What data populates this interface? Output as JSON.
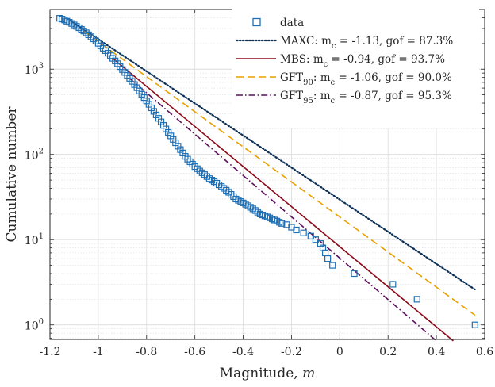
{
  "chart_data": {
    "type": "scatter",
    "title": "",
    "xlabel": "Magnitude,",
    "xlabel_var": "m",
    "ylabel": "Cumulative number",
    "xlim": [
      -1.2,
      0.6
    ],
    "ylim_log10": [
      -0.17,
      3.7
    ],
    "x_ticks": [
      "-1.2",
      "-1",
      "-0.8",
      "-0.6",
      "-0.4",
      "-0.2",
      "0",
      "0.2",
      "0.4",
      "0.6"
    ],
    "x_tick_values": [
      -1.2,
      -1.0,
      -0.8,
      -0.6,
      -0.4,
      -0.2,
      0.0,
      0.2,
      0.4,
      0.6
    ],
    "y_ticks": [
      {
        "base": "10",
        "exp": "0",
        "value": 1
      },
      {
        "base": "10",
        "exp": "1",
        "value": 10
      },
      {
        "base": "10",
        "exp": "2",
        "value": 100
      },
      {
        "base": "10",
        "exp": "3",
        "value": 1000
      }
    ],
    "grid": true,
    "legend_position": "top-right",
    "colors": {
      "data": "#1f6fb4",
      "maxc": "#0c2f55",
      "mbs": "#8b0a1a",
      "gft90": "#e8a000",
      "gft95": "#5b0f5e",
      "axis": "#262626",
      "grid": "#dcdcdc"
    },
    "legend": [
      {
        "key": "data",
        "label": "data",
        "marker": "square"
      },
      {
        "key": "maxc",
        "label": "MAXC: m",
        "sub": "c",
        "tail": " = -1.13, gof = 87.3%",
        "style": "dotted"
      },
      {
        "key": "mbs",
        "label": "MBS: m",
        "sub": "c",
        "tail": " = -0.94, gof = 93.7%",
        "style": "solid"
      },
      {
        "key": "gft90",
        "label": "GFT",
        "sub": "90",
        "mid": ": m",
        "sub2": "c",
        "tail": " = -1.06, gof = 90.0%",
        "style": "dashed"
      },
      {
        "key": "gft95",
        "label": "GFT",
        "sub": "95",
        "mid": ": m",
        "sub2": "c",
        "tail": " = -0.87, gof = 95.3%",
        "style": "dashdot"
      }
    ],
    "series": [
      {
        "name": "data",
        "type": "scatter",
        "points": [
          [
            -1.16,
            3950
          ],
          [
            -1.15,
            3870
          ],
          [
            -1.14,
            3780
          ],
          [
            -1.13,
            3650
          ],
          [
            -1.12,
            3550
          ],
          [
            -1.11,
            3430
          ],
          [
            -1.1,
            3300
          ],
          [
            -1.09,
            3180
          ],
          [
            -1.08,
            3060
          ],
          [
            -1.07,
            2930
          ],
          [
            -1.06,
            2800
          ],
          [
            -1.05,
            2670
          ],
          [
            -1.04,
            2530
          ],
          [
            -1.03,
            2400
          ],
          [
            -1.02,
            2270
          ],
          [
            -1.01,
            2140
          ],
          [
            -1.0,
            2010
          ],
          [
            -0.99,
            1880
          ],
          [
            -0.98,
            1760
          ],
          [
            -0.97,
            1650
          ],
          [
            -0.96,
            1540
          ],
          [
            -0.95,
            1440
          ],
          [
            -0.94,
            1340
          ],
          [
            -0.93,
            1250
          ],
          [
            -0.92,
            1160
          ],
          [
            -0.91,
            1070
          ],
          [
            -0.9,
            990
          ],
          [
            -0.89,
            915
          ],
          [
            -0.88,
            845
          ],
          [
            -0.87,
            780
          ],
          [
            -0.86,
            720
          ],
          [
            -0.85,
            660
          ],
          [
            -0.84,
            606
          ],
          [
            -0.83,
            555
          ],
          [
            -0.82,
            508
          ],
          [
            -0.81,
            464
          ],
          [
            -0.8,
            424
          ],
          [
            -0.79,
            387
          ],
          [
            -0.78,
            352
          ],
          [
            -0.77,
            320
          ],
          [
            -0.76,
            291
          ],
          [
            -0.75,
            265
          ],
          [
            -0.74,
            241
          ],
          [
            -0.73,
            219
          ],
          [
            -0.72,
            199
          ],
          [
            -0.71,
            181
          ],
          [
            -0.7,
            165
          ],
          [
            -0.69,
            150
          ],
          [
            -0.68,
            137
          ],
          [
            -0.67,
            125
          ],
          [
            -0.66,
            114
          ],
          [
            -0.65,
            104
          ],
          [
            -0.64,
            95
          ],
          [
            -0.63,
            88
          ],
          [
            -0.62,
            82
          ],
          [
            -0.61,
            77
          ],
          [
            -0.6,
            72
          ],
          [
            -0.59,
            68
          ],
          [
            -0.58,
            64
          ],
          [
            -0.57,
            61
          ],
          [
            -0.56,
            58
          ],
          [
            -0.55,
            55
          ],
          [
            -0.54,
            52
          ],
          [
            -0.53,
            50
          ],
          [
            -0.52,
            48
          ],
          [
            -0.51,
            46
          ],
          [
            -0.5,
            44
          ],
          [
            -0.49,
            42
          ],
          [
            -0.48,
            40
          ],
          [
            -0.47,
            38
          ],
          [
            -0.46,
            36
          ],
          [
            -0.45,
            34
          ],
          [
            -0.44,
            32
          ],
          [
            -0.43,
            30
          ],
          [
            -0.42,
            29
          ],
          [
            -0.41,
            28
          ],
          [
            -0.4,
            27
          ],
          [
            -0.39,
            26
          ],
          [
            -0.38,
            25
          ],
          [
            -0.37,
            24
          ],
          [
            -0.36,
            23
          ],
          [
            -0.35,
            22
          ],
          [
            -0.34,
            21
          ],
          [
            -0.33,
            20
          ],
          [
            -0.32,
            19.5
          ],
          [
            -0.31,
            19
          ],
          [
            -0.3,
            18.5
          ],
          [
            -0.29,
            18
          ],
          [
            -0.28,
            17.5
          ],
          [
            -0.27,
            17
          ],
          [
            -0.26,
            16.5
          ],
          [
            -0.25,
            16
          ],
          [
            -0.24,
            15.5
          ],
          [
            -0.22,
            15
          ],
          [
            -0.2,
            14
          ],
          [
            -0.18,
            13
          ],
          [
            -0.15,
            12
          ],
          [
            -0.12,
            11
          ],
          [
            -0.1,
            10
          ],
          [
            -0.08,
            9
          ],
          [
            -0.07,
            8
          ],
          [
            -0.06,
            7
          ],
          [
            -0.05,
            6
          ],
          [
            -0.03,
            5
          ],
          [
            0.06,
            4
          ],
          [
            0.22,
            3
          ],
          [
            0.32,
            2
          ],
          [
            0.56,
            1
          ]
        ]
      },
      {
        "name": "MAXC",
        "type": "line",
        "key": "maxc",
        "points": [
          [
            -1.13,
            3950
          ],
          [
            0.56,
            2.6
          ]
        ]
      },
      {
        "name": "MBS",
        "type": "line",
        "key": "mbs",
        "points": [
          [
            -0.94,
            1340
          ],
          [
            0.47,
            0.65
          ]
        ]
      },
      {
        "name": "GFT90",
        "type": "line",
        "key": "gft90",
        "points": [
          [
            -1.06,
            2800
          ],
          [
            0.56,
            1.3
          ]
        ]
      },
      {
        "name": "GFT95",
        "type": "line",
        "key": "gft95",
        "points": [
          [
            -0.87,
            780
          ],
          [
            0.4,
            0.65
          ]
        ]
      }
    ]
  }
}
